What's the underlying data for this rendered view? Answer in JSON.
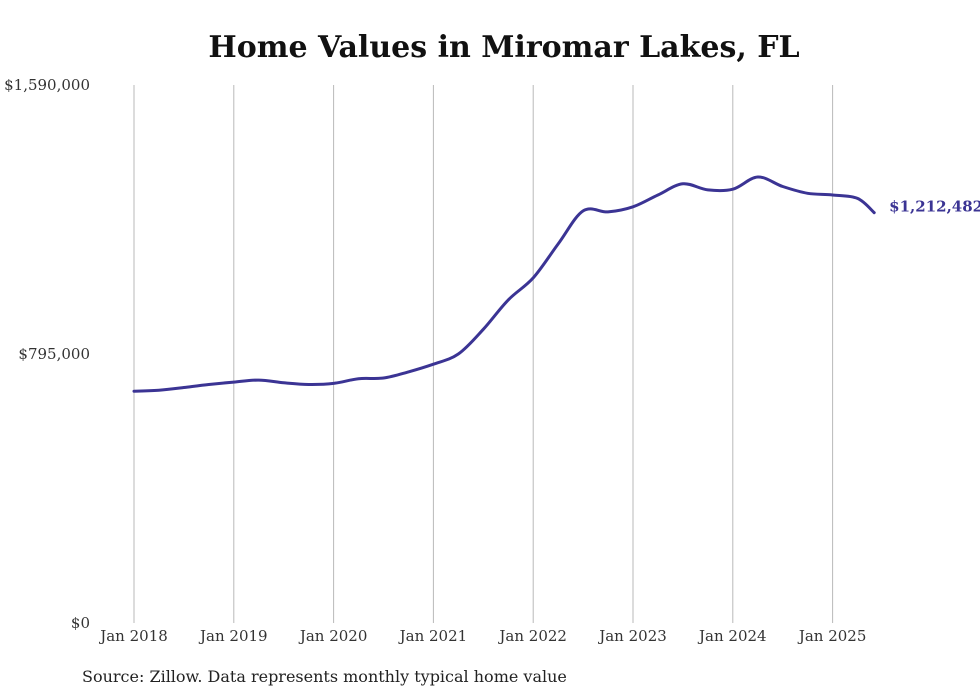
{
  "chart_data": {
    "type": "line",
    "title": "Home Values in Miromar Lakes, FL",
    "xlabel": "",
    "ylabel": "",
    "ylim": [
      0,
      1590000
    ],
    "y_ticks": [
      0,
      795000,
      1590000
    ],
    "y_tick_labels": [
      "$0",
      "$795,000",
      "$1,590,000"
    ],
    "x_ticks": [
      "2018-01",
      "2019-01",
      "2020-01",
      "2021-01",
      "2022-01",
      "2023-01",
      "2024-01",
      "2025-01"
    ],
    "x_tick_labels": [
      "Jan 2018",
      "Jan 2019",
      "Jan 2020",
      "Jan 2021",
      "Jan 2022",
      "Jan 2023",
      "Jan 2024",
      "Jan 2025"
    ],
    "grid": "vertical",
    "line_color": "#3b3494",
    "series": [
      {
        "points": [
          [
            "2018-01",
            685000
          ],
          [
            "2018-04",
            688000
          ],
          [
            "2018-07",
            696000
          ],
          [
            "2018-10",
            705000
          ],
          [
            "2019-01",
            712000
          ],
          [
            "2019-04",
            718000
          ],
          [
            "2019-07",
            710000
          ],
          [
            "2019-10",
            705000
          ],
          [
            "2020-01",
            708000
          ],
          [
            "2020-04",
            722000
          ],
          [
            "2020-07",
            724000
          ],
          [
            "2020-10",
            742000
          ],
          [
            "2021-01",
            765000
          ],
          [
            "2021-04",
            795000
          ],
          [
            "2021-07",
            868000
          ],
          [
            "2021-10",
            955000
          ],
          [
            "2022-01",
            1020000
          ],
          [
            "2022-04",
            1120000
          ],
          [
            "2022-07",
            1218000
          ],
          [
            "2022-10",
            1215000
          ],
          [
            "2023-01",
            1230000
          ],
          [
            "2023-04",
            1265000
          ],
          [
            "2023-07",
            1298000
          ],
          [
            "2023-10",
            1280000
          ],
          [
            "2024-01",
            1282000
          ],
          [
            "2024-04",
            1318000
          ],
          [
            "2024-07",
            1290000
          ],
          [
            "2024-10",
            1270000
          ],
          [
            "2025-01",
            1265000
          ],
          [
            "2025-04",
            1255000
          ],
          [
            "2025-06",
            1212482
          ]
        ]
      }
    ],
    "end_label": "$1,212,482"
  },
  "source_note": "Source: Zillow. Data represents monthly typical home value"
}
